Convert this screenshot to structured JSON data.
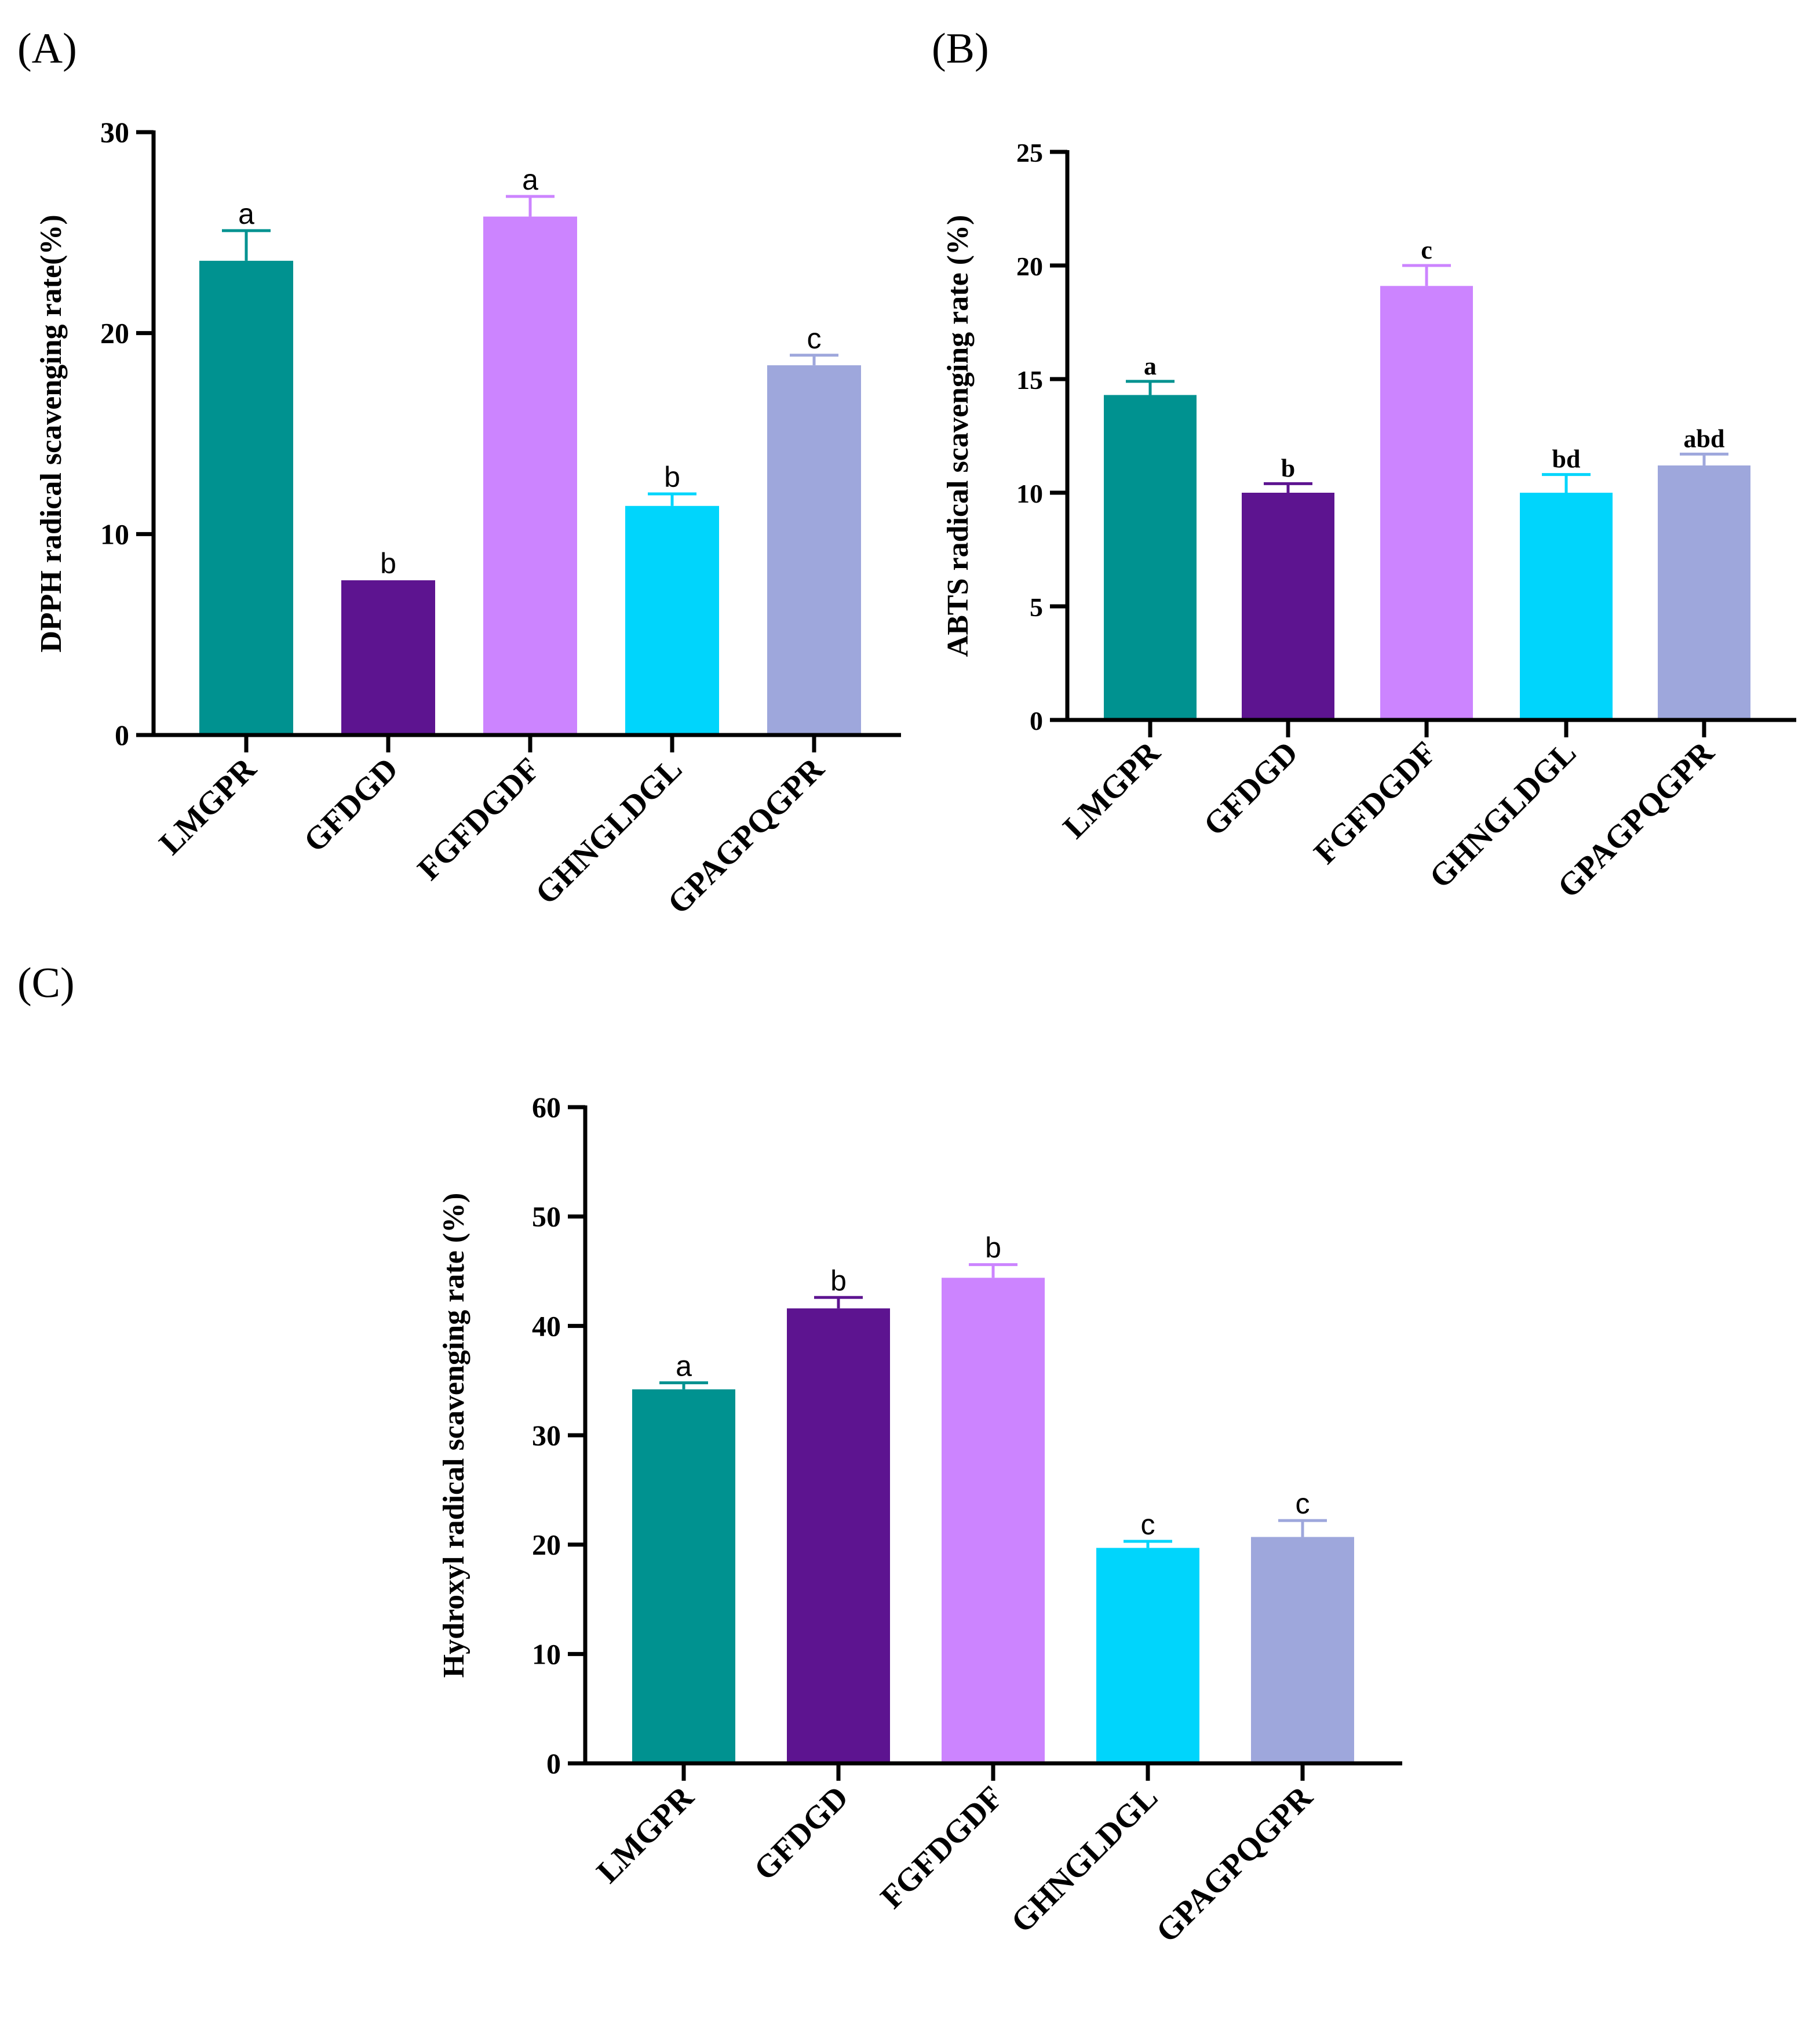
{
  "panels": [
    {
      "letter": "(A)"
    },
    {
      "letter": "(B)"
    },
    {
      "letter": "(C)"
    }
  ],
  "chart_data": [
    {
      "type": "bar",
      "panel": "(A)",
      "title": "",
      "xlabel": "",
      "ylabel": "DPPH radical scavenging rate(%)",
      "ylim": [
        0,
        30
      ],
      "yticks": [
        0,
        10,
        20,
        30
      ],
      "categories": [
        "LMGPR",
        "GFDGD",
        "FGFDGDF",
        "GHNGLDGL",
        "GPAGPQGPR"
      ],
      "values": [
        23.6,
        7.7,
        25.8,
        11.4,
        18.4
      ],
      "errors": [
        1.5,
        0,
        1.0,
        0.6,
        0.5
      ],
      "significance": [
        "a",
        "b",
        "a",
        "b",
        "c"
      ],
      "colors": [
        "#009290",
        "#5d1490",
        "#cc84ff",
        "#00d5fc",
        "#9ea7dc"
      ]
    },
    {
      "type": "bar",
      "panel": "(B)",
      "title": "",
      "xlabel": "",
      "ylabel": "ABTS radical scavenging rate (%)",
      "ylim": [
        0,
        25
      ],
      "yticks": [
        0,
        5,
        10,
        15,
        20,
        25
      ],
      "categories": [
        "LMGPR",
        "GFDGD",
        "FGFDGDF",
        "GHNGLDGL",
        "GPAGPQGPR"
      ],
      "values": [
        14.3,
        10.0,
        19.1,
        10.0,
        11.2
      ],
      "errors": [
        0.6,
        0.4,
        0.9,
        0.8,
        0.5
      ],
      "significance": [
        "a",
        "b",
        "c",
        "bd",
        "abd"
      ],
      "colors": [
        "#009290",
        "#5d1490",
        "#cc84ff",
        "#00d5fc",
        "#9ea7dc"
      ]
    },
    {
      "type": "bar",
      "panel": "(C)",
      "title": "",
      "xlabel": "",
      "ylabel": "Hydroxyl radical scavenging rate (%)",
      "ylim": [
        0,
        60
      ],
      "yticks": [
        0,
        10,
        20,
        30,
        40,
        50,
        60
      ],
      "categories": [
        "LMGPR",
        "GFDGD",
        "FGFDGDF",
        "GHNGLDGL",
        "GPAGPQGPR"
      ],
      "values": [
        34.2,
        41.6,
        44.4,
        19.7,
        20.7
      ],
      "errors": [
        0.6,
        1.0,
        1.2,
        0.6,
        1.5
      ],
      "significance": [
        "a",
        "b",
        "b",
        "c",
        "c"
      ],
      "colors": [
        "#009290",
        "#5d1490",
        "#cc84ff",
        "#00d5fc",
        "#9ea7dc"
      ]
    }
  ]
}
